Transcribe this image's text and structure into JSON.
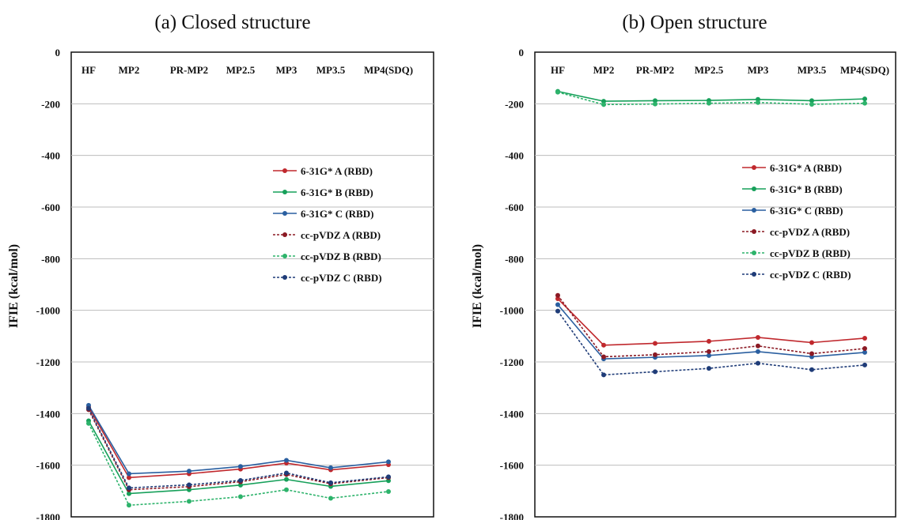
{
  "chart_data": [
    {
      "type": "line",
      "title": "(a) Closed structure",
      "xlabel": "",
      "ylabel": "IFIE (kcal/mol)",
      "ylim": [
        -1800,
        0
      ],
      "yticks": [
        0,
        -200,
        -400,
        -600,
        -800,
        -1000,
        -1200,
        -1400,
        -1600,
        -1800
      ],
      "categories": [
        "HF",
        "MP2",
        "PR-MP2",
        "MP2.5",
        "MP3",
        "MP3.5",
        "MP4(SDQ)"
      ],
      "grid": "horizontal",
      "legend_position": "right",
      "series": [
        {
          "name": "6-31G* A (RBD)",
          "color": "#C0282D",
          "dash": false,
          "values": [
            -1375,
            -1648,
            -1633,
            -1615,
            -1592,
            -1618,
            -1598
          ]
        },
        {
          "name": "6-31G* B (RBD)",
          "color": "#16A05A",
          "dash": false,
          "values": [
            -1428,
            -1710,
            -1695,
            -1677,
            -1655,
            -1682,
            -1660
          ]
        },
        {
          "name": "6-31G* C (RBD)",
          "color": "#2A5FA0",
          "dash": false,
          "values": [
            -1368,
            -1633,
            -1623,
            -1605,
            -1581,
            -1610,
            -1587
          ]
        },
        {
          "name": "cc-pVDZ A (RBD)",
          "color": "#8B1A24",
          "dash": true,
          "values": [
            -1385,
            -1695,
            -1683,
            -1664,
            -1636,
            -1672,
            -1648
          ]
        },
        {
          "name": "cc-pVDZ B (RBD)",
          "color": "#2DB36B",
          "dash": true,
          "values": [
            -1438,
            -1755,
            -1740,
            -1722,
            -1695,
            -1728,
            -1702
          ]
        },
        {
          "name": "cc-pVDZ C (RBD)",
          "color": "#1F3C78",
          "dash": true,
          "values": [
            -1380,
            -1688,
            -1676,
            -1659,
            -1630,
            -1668,
            -1645
          ]
        }
      ]
    },
    {
      "type": "line",
      "title": "(b) Open structure",
      "xlabel": "",
      "ylabel": "IFIE (kcal/mol)",
      "ylim": [
        -1800,
        0
      ],
      "yticks": [
        0,
        -200,
        -400,
        -600,
        -800,
        -1000,
        -1200,
        -1400,
        -1600,
        -1800
      ],
      "categories": [
        "HF",
        "MP2",
        "PR-MP2",
        "MP2.5",
        "MP3",
        "MP3.5",
        "MP4(SDQ)"
      ],
      "grid": "horizontal",
      "legend_position": "right",
      "series": [
        {
          "name": "6-31G* A (RBD)",
          "color": "#C0282D",
          "dash": false,
          "values": [
            -955,
            -1135,
            -1128,
            -1120,
            -1105,
            -1125,
            -1108
          ]
        },
        {
          "name": "6-31G* B (RBD)",
          "color": "#16A05A",
          "dash": false,
          "values": [
            -152,
            -190,
            -188,
            -187,
            -183,
            -188,
            -181
          ]
        },
        {
          "name": "6-31G* C (RBD)",
          "color": "#2A5FA0",
          "dash": false,
          "values": [
            -978,
            -1188,
            -1182,
            -1175,
            -1160,
            -1180,
            -1163
          ]
        },
        {
          "name": "cc-pVDZ A (RBD)",
          "color": "#8B1A24",
          "dash": true,
          "values": [
            -942,
            -1180,
            -1172,
            -1160,
            -1138,
            -1168,
            -1148
          ]
        },
        {
          "name": "cc-pVDZ B (RBD)",
          "color": "#2DB36B",
          "dash": true,
          "values": [
            -155,
            -203,
            -201,
            -198,
            -195,
            -202,
            -198
          ]
        },
        {
          "name": "cc-pVDZ C (RBD)",
          "color": "#1F3C78",
          "dash": true,
          "values": [
            -1003,
            -1250,
            -1238,
            -1225,
            -1205,
            -1230,
            -1212
          ]
        }
      ]
    }
  ]
}
